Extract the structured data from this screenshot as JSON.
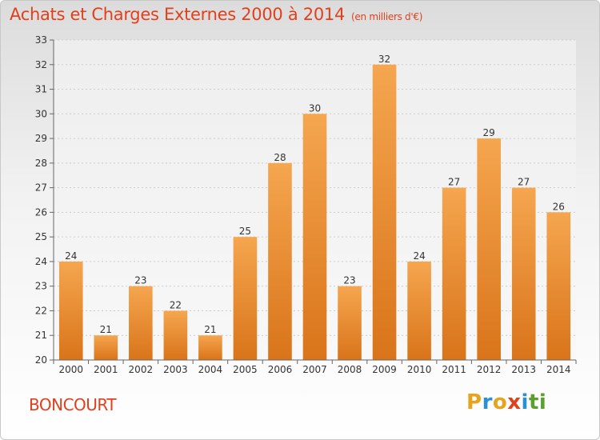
{
  "header": {
    "title": "Achats et Charges Externes 2000 à 2014",
    "subtitle": "(en milliers d'€)"
  },
  "commune": "BONCOURT",
  "logo": {
    "text": "Proxiti",
    "letters": [
      "P",
      "r",
      "o",
      "x",
      "i",
      "t",
      "i"
    ],
    "colors": [
      "#e8a21c",
      "#2a8fd6",
      "#e8a21c",
      "#e2401c",
      "#2a8fd6",
      "#5aa02c",
      "#5aa02c"
    ]
  },
  "chart_data": {
    "type": "bar",
    "categories": [
      "2000",
      "2001",
      "2002",
      "2003",
      "2004",
      "2005",
      "2006",
      "2007",
      "2008",
      "2009",
      "2010",
      "2011",
      "2012",
      "2013",
      "2014"
    ],
    "values": [
      24,
      21,
      23,
      22,
      21,
      25,
      28,
      30,
      23,
      32,
      24,
      27,
      29,
      27,
      26
    ],
    "ylim": [
      20,
      33
    ],
    "yticks": [
      20,
      21,
      22,
      23,
      24,
      25,
      26,
      27,
      28,
      29,
      30,
      31,
      32,
      33
    ],
    "grid": true,
    "bar_color_top": "#f5a64f",
    "bar_color_bottom": "#d9741a",
    "title": "Achats et Charges Externes 2000 à 2014",
    "xlabel": "",
    "ylabel": ""
  }
}
